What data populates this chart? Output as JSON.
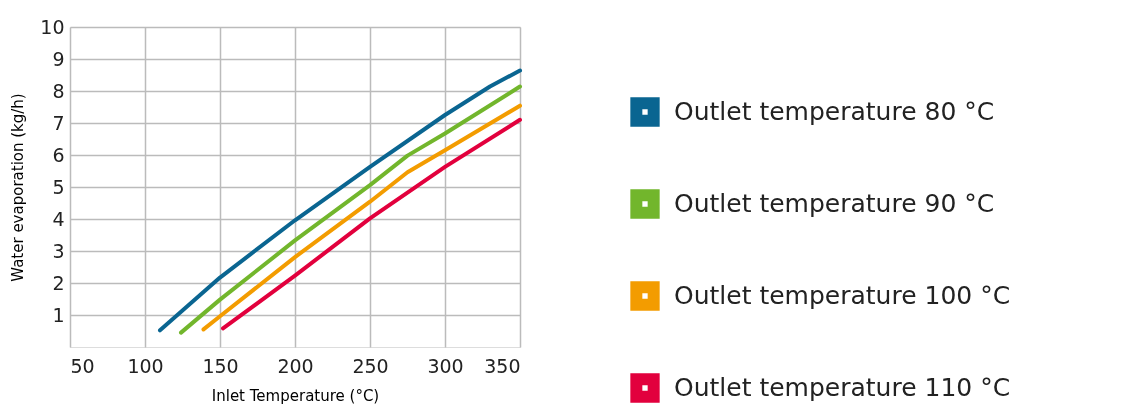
{
  "chart_data": {
    "type": "line",
    "xlabel": "Inlet Temperature (°C)",
    "ylabel": "Water evaporation (kg/h)",
    "xlim": [
      50,
      350
    ],
    "xticks": [
      50,
      100,
      150,
      200,
      250,
      300,
      350
    ],
    "ylim": [
      0,
      10
    ],
    "yticks": [
      1,
      2,
      3,
      4,
      5,
      6,
      7,
      8,
      9,
      10
    ],
    "grid": true,
    "legend": "right",
    "marker": "none",
    "line_style": "solid",
    "series": [
      {
        "name": "Outlet temperature 80 °C",
        "color": "#0a6591",
        "x": [
          110,
          150,
          200,
          250,
          300,
          330,
          350
        ],
        "values": [
          0.52,
          2.17,
          3.96,
          5.63,
          7.25,
          8.14,
          8.64
        ]
      },
      {
        "name": "Outlet temperature 90 °C",
        "color": "#72b62c",
        "x": [
          124,
          150,
          200,
          250,
          275,
          300,
          350
        ],
        "values": [
          0.45,
          1.48,
          3.33,
          5.06,
          5.98,
          6.67,
          8.14
        ]
      },
      {
        "name": "Outlet temperature 100 °C",
        "color": "#f39c00",
        "x": [
          139,
          150,
          200,
          250,
          275,
          300,
          350
        ],
        "values": [
          0.55,
          0.96,
          2.81,
          4.54,
          5.46,
          6.15,
          7.54
        ]
      },
      {
        "name": "Outlet temperature 110 °C",
        "color": "#e2003d",
        "x": [
          152,
          200,
          250,
          300,
          350
        ],
        "values": [
          0.58,
          2.23,
          4.02,
          5.63,
          7.1
        ]
      }
    ]
  }
}
